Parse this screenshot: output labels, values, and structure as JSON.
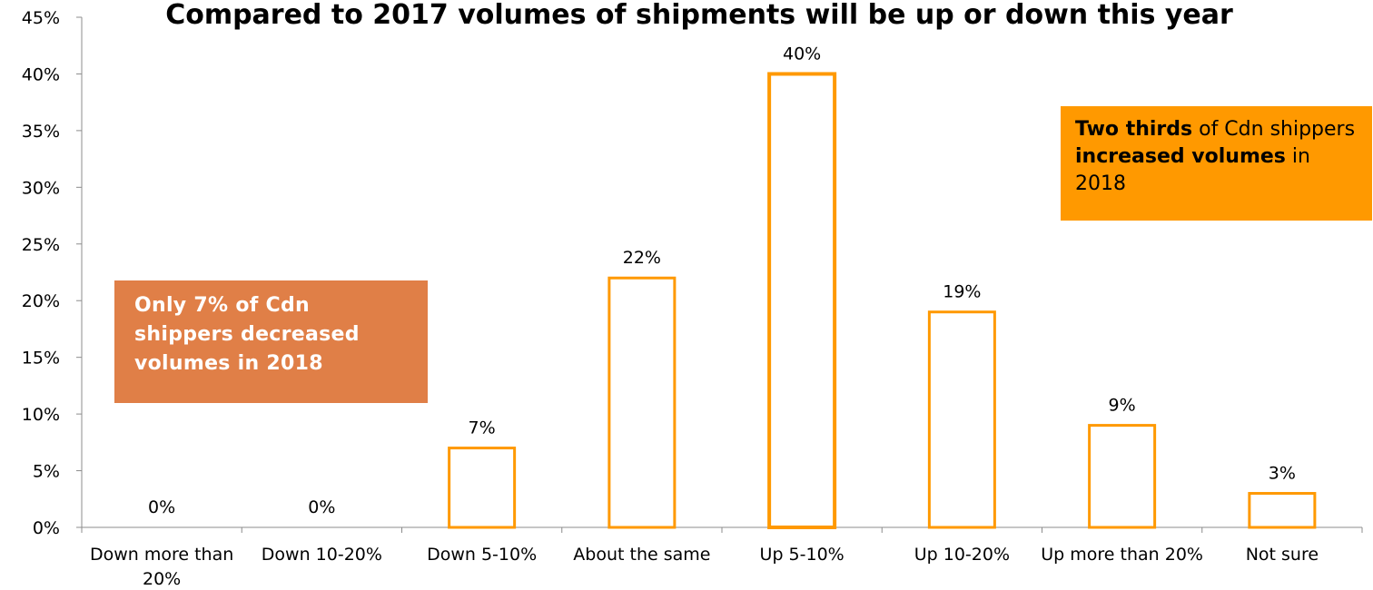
{
  "chart_data": {
    "type": "bar",
    "title": "Compared to 2017 volumes of shipments will be up or down this year",
    "categories": [
      "Down more than 20%",
      "Down 10-20%",
      "Down 5-10%",
      "About the same",
      "Up 5-10%",
      "Up 10-20%",
      "Up more than 20%",
      "Not sure"
    ],
    "values": [
      0,
      0,
      7,
      22,
      40,
      19,
      9,
      3
    ],
    "data_labels": [
      "0%",
      "0%",
      "7%",
      "22%",
      "40%",
      "19%",
      "9%",
      "3%"
    ],
    "ylim": [
      0,
      45
    ],
    "yticks": [
      "0%",
      "5%",
      "10%",
      "15%",
      "20%",
      "25%",
      "30%",
      "35%",
      "40%",
      "45%"
    ],
    "bar_style": "outline",
    "bar_color": "#ff9900",
    "grid": false,
    "legend": "none"
  },
  "annotations": {
    "left": {
      "text": "Only 7% of Cdn shippers decreased volumes in 2018",
      "color": "#e07f47"
    },
    "right": {
      "part1": "Two thirds",
      "part2": " of Cdn shippers ",
      "part3": "increased volumes",
      "part4": " in 2018",
      "color": "#ff9900"
    }
  }
}
